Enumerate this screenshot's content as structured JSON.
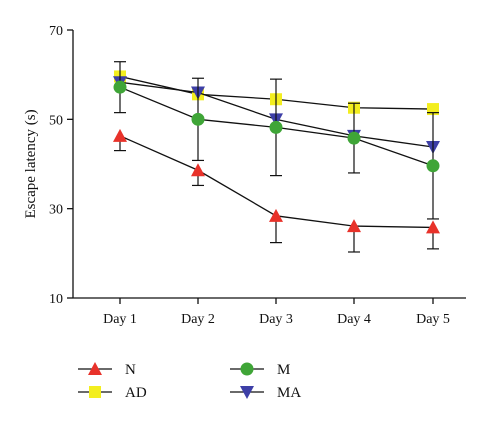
{
  "chart_data": {
    "type": "line",
    "title": "",
    "xlabel": "",
    "ylabel": "Escape latency (s)",
    "categories": [
      "Day 1",
      "Day 2",
      "Day 3",
      "Day 4",
      "Day 5"
    ],
    "yticks": [
      "10",
      "30",
      "50",
      "70"
    ],
    "ylim": [
      10,
      70
    ],
    "grid": false,
    "legend_position": "bottom",
    "series": [
      {
        "name": "N",
        "marker": "triangle-up",
        "color": "#e8322a",
        "values": [
          46.3,
          38.6,
          28.4,
          26.1,
          25.8
        ],
        "error": [
          3.3,
          3.4,
          6.0,
          5.8,
          4.8
        ],
        "error_dir": "down"
      },
      {
        "name": "AD",
        "marker": "square",
        "color": "#f3ee1f",
        "values": [
          59.6,
          55.6,
          54.5,
          52.6,
          52.3
        ],
        "error": [
          0,
          0,
          0,
          0,
          0
        ],
        "error_dir": "none"
      },
      {
        "name": "M",
        "marker": "circle",
        "color": "#3fa537",
        "values": [
          57.2,
          50.0,
          48.2,
          45.8,
          39.6
        ],
        "error": [
          5.7,
          9.2,
          10.8,
          7.8,
          11.9
        ],
        "error_dir": "both"
      },
      {
        "name": "MA",
        "marker": "triangle-down",
        "color": "#3d3fa7",
        "values": [
          58.3,
          56.0,
          50.0,
          46.3,
          43.8
        ],
        "error": [
          0,
          0,
          0,
          0,
          0
        ],
        "error_dir": "none"
      }
    ]
  }
}
